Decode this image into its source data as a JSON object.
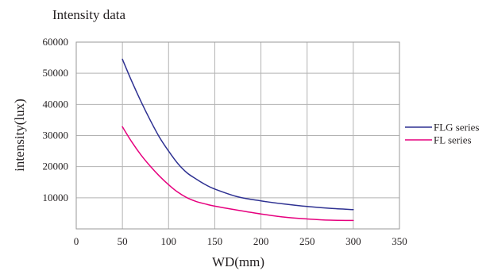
{
  "chart_data": {
    "type": "line",
    "title": "Intensity data",
    "xlabel": "WD(mm)",
    "ylabel": "intensity(lux)",
    "xlim": [
      0,
      350
    ],
    "ylim": [
      0,
      60000
    ],
    "x_ticks": [
      0,
      50,
      100,
      150,
      200,
      250,
      300,
      350
    ],
    "y_ticks": [
      10000,
      20000,
      30000,
      40000,
      50000,
      60000
    ],
    "grid": true,
    "legend_position": "right",
    "series": [
      {
        "name": "FLG series",
        "color": "#2e3192",
        "x": [
          50,
          60,
          70,
          80,
          90,
          100,
          110,
          120,
          130,
          140,
          150,
          175,
          200,
          225,
          250,
          275,
          300
        ],
        "values": [
          54500,
          47500,
          41000,
          35000,
          29500,
          25000,
          21000,
          18000,
          16000,
          14200,
          12800,
          10300,
          9000,
          8000,
          7200,
          6600,
          6200
        ]
      },
      {
        "name": "FL series",
        "color": "#e6007e",
        "x": [
          50,
          60,
          70,
          80,
          90,
          100,
          110,
          120,
          130,
          140,
          150,
          175,
          200,
          225,
          250,
          275,
          300
        ],
        "values": [
          32800,
          28000,
          23800,
          20200,
          17000,
          14200,
          11800,
          10000,
          8800,
          8000,
          7300,
          6000,
          4800,
          3800,
          3200,
          2800,
          2700
        ]
      }
    ]
  }
}
